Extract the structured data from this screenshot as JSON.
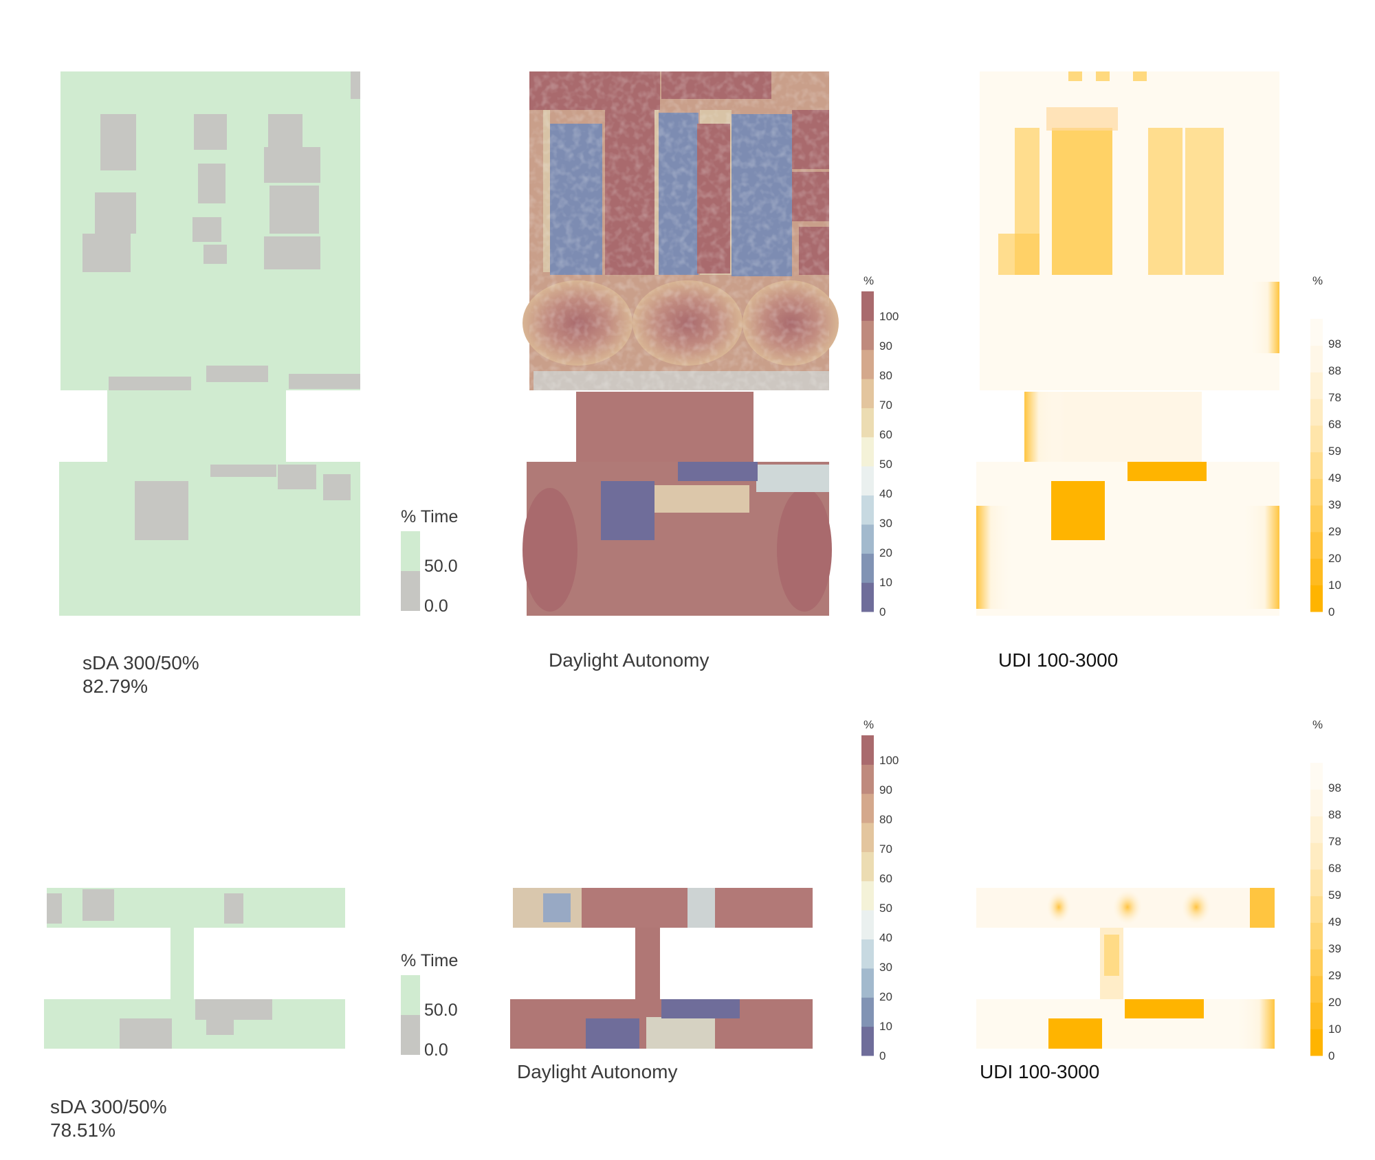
{
  "colors": {
    "sda_pass": "#d0ebd0",
    "sda_fail": "#c6c6c2",
    "da_ramp": [
      "#6f6d9a",
      "#8193b4",
      "#a2b9cd",
      "#c7d9e1",
      "#eaf0ef",
      "#f4f2d8",
      "#ecdcb2",
      "#e3c59e",
      "#d4a88c",
      "#bf8a7d",
      "#a96a6d"
    ],
    "udi_ramp": [
      "#ffb400",
      "#ffbb20",
      "#ffc33b",
      "#ffcc56",
      "#ffd572",
      "#ffdd8e",
      "#ffe5aa",
      "#ffecc2",
      "#fff2d6",
      "#fff7e8",
      "#fffbf3"
    ]
  },
  "legends": {
    "sda": {
      "title": "% Time",
      "ticks": [
        "50.0",
        "0.0"
      ]
    },
    "da": {
      "title": "%",
      "ticks": [
        "100",
        "90",
        "80",
        "70",
        "60",
        "50",
        "40",
        "30",
        "20",
        "10",
        "0"
      ]
    },
    "udi": {
      "title": "%",
      "ticks": [
        "98",
        "88",
        "78",
        "68",
        "59",
        "49",
        "39",
        "29",
        "20",
        "10",
        "0"
      ]
    }
  },
  "captions": {
    "sda_1_title": "sDA 300/50%",
    "sda_1_value": "82.79%",
    "da_1": "Daylight Autonomy",
    "udi_1": "UDI 100-3000",
    "sda_2_title": "sDA 300/50%",
    "sda_2_value": "78.51%",
    "da_2": "Daylight Autonomy",
    "udi_2": "UDI 100-3000"
  },
  "chart_data": [
    {
      "type": "heatmap",
      "metric": "sDA 300/50%",
      "value_percent": 82.79,
      "legend_title": "% Time",
      "legend_ticks": [
        50.0,
        0.0
      ]
    },
    {
      "type": "heatmap",
      "metric": "Daylight Autonomy",
      "legend_title": "%",
      "scale": [
        0,
        100
      ],
      "legend_ticks": [
        100,
        90,
        80,
        70,
        60,
        50,
        40,
        30,
        20,
        10,
        0
      ]
    },
    {
      "type": "heatmap",
      "metric": "UDI 100-3000",
      "legend_title": "%",
      "scale": [
        0,
        98
      ],
      "legend_ticks": [
        98,
        88,
        78,
        68,
        59,
        49,
        39,
        29,
        20,
        10,
        0
      ]
    },
    {
      "type": "heatmap",
      "metric": "sDA 300/50%",
      "value_percent": 78.51,
      "legend_title": "% Time",
      "legend_ticks": [
        50.0,
        0.0
      ]
    },
    {
      "type": "heatmap",
      "metric": "Daylight Autonomy",
      "legend_title": "%",
      "scale": [
        0,
        100
      ],
      "legend_ticks": [
        100,
        90,
        80,
        70,
        60,
        50,
        40,
        30,
        20,
        10,
        0
      ]
    },
    {
      "type": "heatmap",
      "metric": "UDI 100-3000",
      "legend_title": "%",
      "scale": [
        0,
        98
      ],
      "legend_ticks": [
        98,
        88,
        78,
        68,
        59,
        49,
        39,
        29,
        20,
        10,
        0
      ]
    }
  ]
}
